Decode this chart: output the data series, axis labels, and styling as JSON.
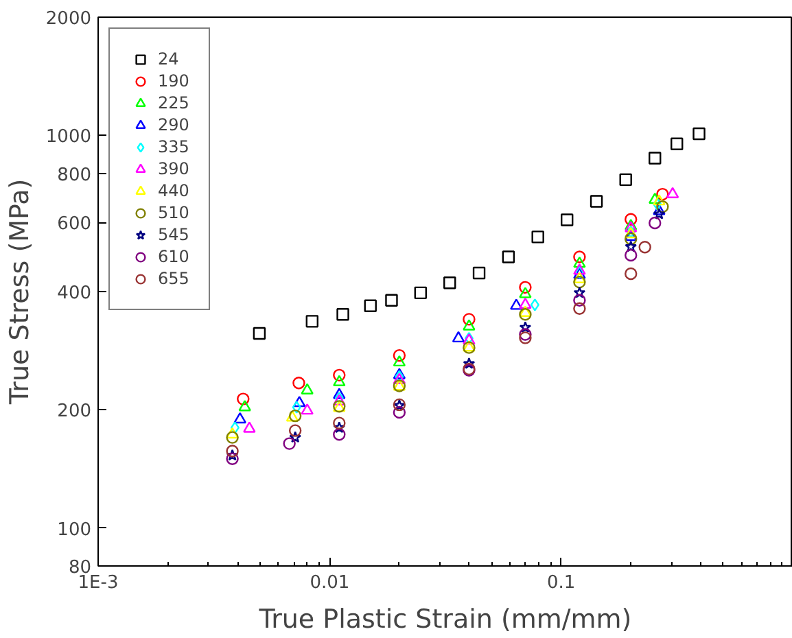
{
  "chart_data": {
    "type": "scatter",
    "xlabel": "True Plastic Strain (mm/mm)",
    "ylabel": "True Stress (MPa)",
    "log": "xy",
    "grid": false,
    "legend": "top left",
    "xlim": [
      0.001,
      1
    ],
    "ylim": [
      80,
      2000
    ],
    "xticks": [
      {
        "value": 0.001,
        "label": "1E-3"
      },
      0.01,
      0.1
    ],
    "yticks": [
      80,
      100,
      200,
      400,
      600,
      800,
      1000,
      2000
    ],
    "series": [
      {
        "name": "24",
        "color": "#000000",
        "marker": "square",
        "x": [
          0.00497,
          0.0084,
          0.0114,
          0.015,
          0.0185,
          0.0247,
          0.033,
          0.0442,
          0.0592,
          0.0793,
          0.106,
          0.142,
          0.19,
          0.254,
          0.316,
          0.394
        ],
        "values": [
          313,
          336,
          350,
          368,
          380,
          397,
          421,
          446,
          490,
          551,
          609,
          679,
          771,
          875,
          951,
          1009
        ]
      },
      {
        "name": "190",
        "color": "#ff0000",
        "marker": "circle",
        "x": [
          0.00423,
          0.00736,
          0.011,
          0.02,
          0.04,
          0.07,
          0.12,
          0.2,
          0.274
        ],
        "values": [
          213,
          234,
          245,
          275,
          340,
          410,
          490,
          611,
          708
        ]
      },
      {
        "name": "225",
        "color": "#00ff00",
        "marker": "triangle",
        "x": [
          0.0043,
          0.008,
          0.011,
          0.02,
          0.04,
          0.07,
          0.12,
          0.2,
          0.254
        ],
        "values": [
          203,
          224,
          235,
          264,
          326,
          394,
          471,
          587,
          685
        ]
      },
      {
        "name": "290",
        "color": "#0000ff",
        "marker": "triangle",
        "x": [
          0.0041,
          0.0074,
          0.011,
          0.02,
          0.036,
          0.064,
          0.12,
          0.2,
          0.265
        ],
        "values": [
          189,
          208,
          218,
          245,
          304,
          368,
          441,
          551,
          641
        ]
      },
      {
        "name": "335",
        "color": "#00ffff",
        "marker": "diamond",
        "x": [
          0.0039,
          0.0072,
          0.011,
          0.02,
          0.04,
          0.077,
          0.12,
          0.2,
          0.26
        ],
        "values": [
          180,
          203,
          214,
          243,
          304,
          370,
          448,
          567,
          668
        ]
      },
      {
        "name": "390",
        "color": "#ff00ff",
        "marker": "triangle",
        "x": [
          0.0045,
          0.008,
          0.011,
          0.02,
          0.04,
          0.07,
          0.12,
          0.2,
          0.303
        ],
        "values": [
          179,
          199,
          210,
          238,
          300,
          370,
          452,
          580,
          708
        ]
      },
      {
        "name": "440",
        "color": "#ffff00",
        "marker": "triangle",
        "x": [
          0.0038,
          0.0069,
          0.011,
          0.02,
          0.04,
          0.07,
          0.12,
          0.2,
          0.265
        ],
        "values": [
          173,
          191,
          202,
          229,
          288,
          353,
          430,
          560,
          679
        ]
      },
      {
        "name": "510",
        "color": "#808000",
        "marker": "circle",
        "x": [
          0.0038,
          0.0071,
          0.011,
          0.02,
          0.04,
          0.07,
          0.12,
          0.2,
          0.274
        ],
        "values": [
          170,
          193,
          204,
          230,
          288,
          350,
          423,
          545,
          658
        ]
      },
      {
        "name": "545",
        "color": "#000080",
        "marker": "star",
        "x": [
          0.0038,
          0.0071,
          0.011,
          0.02,
          0.04,
          0.07,
          0.12,
          0.2,
          0.265
        ],
        "values": [
          153,
          170,
          180,
          205,
          262,
          324,
          397,
          520,
          630
        ]
      },
      {
        "name": "610",
        "color": "#800080",
        "marker": "circle",
        "x": [
          0.0038,
          0.0067,
          0.011,
          0.02,
          0.04,
          0.07,
          0.12,
          0.2,
          0.254
        ],
        "values": [
          150,
          164,
          173,
          197,
          252,
          311,
          380,
          495,
          598
        ]
      },
      {
        "name": "655",
        "color": "#993333",
        "marker": "circle",
        "x": [
          0.0038,
          0.0071,
          0.011,
          0.02,
          0.04,
          0.07,
          0.12,
          0.2,
          0.23
        ],
        "values": [
          157,
          177,
          185,
          206,
          254,
          305,
          362,
          444,
          519
        ]
      }
    ]
  }
}
